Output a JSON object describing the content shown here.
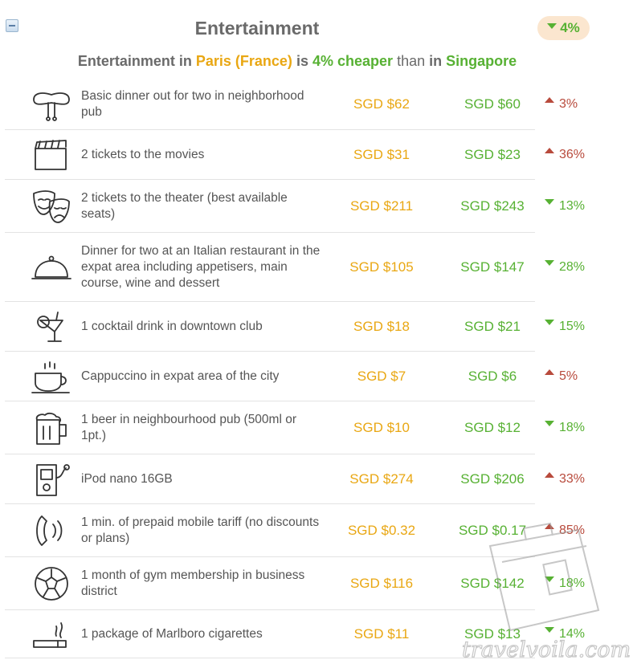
{
  "section": {
    "title": "Entertainment",
    "badge_pct": "4%"
  },
  "summary": {
    "prefix": "Entertainment in",
    "city_a": "Paris (France)",
    "is_word": "is",
    "pct_text": "4% cheaper",
    "than_word": "than",
    "in_word": "in",
    "city_b": "Singapore"
  },
  "colors": {
    "city_a": "#e9a713",
    "city_b": "#57b133",
    "up": "#b84a3c",
    "down": "#57b133",
    "badge_bg": "#fbe6cf"
  },
  "rows": [
    {
      "icon": "sausage-icon",
      "label": "Basic dinner out for two in neighborhood pub",
      "price_a": "SGD $62",
      "price_b": "SGD $60",
      "dir": "up",
      "diff": "3%"
    },
    {
      "icon": "clapperboard-icon",
      "label": "2 tickets to the movies",
      "price_a": "SGD $31",
      "price_b": "SGD $23",
      "dir": "up",
      "diff": "36%"
    },
    {
      "icon": "theater-masks-icon",
      "label": "2 tickets to the theater (best available seats)",
      "price_a": "SGD $211",
      "price_b": "SGD $243",
      "dir": "down",
      "diff": "13%"
    },
    {
      "icon": "cloche-icon",
      "label": "Dinner for two at an Italian restaurant in the expat area including appetisers, main course, wine and dessert",
      "price_a": "SGD $105",
      "price_b": "SGD $147",
      "dir": "down",
      "diff": "28%"
    },
    {
      "icon": "cocktail-icon",
      "label": "1 cocktail drink in downtown club",
      "price_a": "SGD $18",
      "price_b": "SGD $21",
      "dir": "down",
      "diff": "15%"
    },
    {
      "icon": "coffee-cup-icon",
      "label": "Cappuccino in expat area of the city",
      "price_a": "SGD $7",
      "price_b": "SGD $6",
      "dir": "up",
      "diff": "5%"
    },
    {
      "icon": "beer-mug-icon",
      "label": "1 beer in neighbourhood pub (500ml or 1pt.)",
      "price_a": "SGD $10",
      "price_b": "SGD $12",
      "dir": "down",
      "diff": "18%"
    },
    {
      "icon": "ipod-icon",
      "label": "iPod nano 16GB",
      "price_a": "SGD $274",
      "price_b": "SGD $206",
      "dir": "up",
      "diff": "33%"
    },
    {
      "icon": "phone-handset-icon",
      "label": "1 min. of prepaid mobile tariff (no discounts or plans)",
      "price_a": "SGD $0.32",
      "price_b": "SGD $0.17",
      "dir": "up",
      "diff": "85%"
    },
    {
      "icon": "soccer-ball-icon",
      "label": "1 month of gym membership in business district",
      "price_a": "SGD $116",
      "price_b": "SGD $142",
      "dir": "down",
      "diff": "18%"
    },
    {
      "icon": "cigarette-icon",
      "label": "1 package of Marlboro cigarettes",
      "price_a": "SGD $11",
      "price_b": "SGD $13",
      "dir": "down",
      "diff": "14%"
    }
  ],
  "watermark": {
    "text": "travelvoila.com",
    "icon": "suitcase-icon"
  }
}
